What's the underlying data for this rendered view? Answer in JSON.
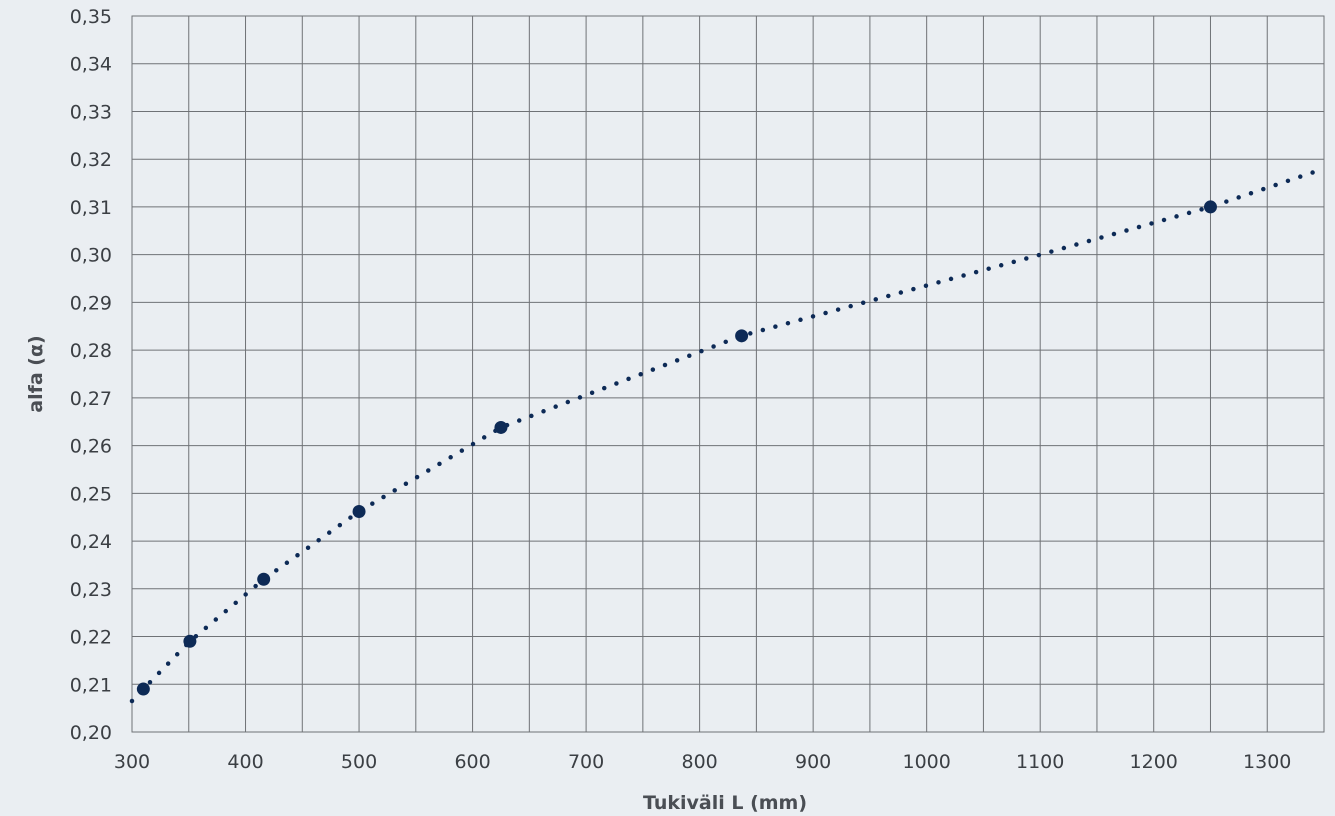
{
  "chart_data": {
    "type": "scatter",
    "xlabel": "Tukiväli L (mm)",
    "ylabel": "alfa (α)",
    "xlim": [
      300,
      1350
    ],
    "ylim": [
      0.2,
      0.35
    ],
    "x_ticks": [
      "300",
      "400",
      "500",
      "600",
      "700",
      "800",
      "900",
      "1000",
      "1100",
      "1200",
      "1300"
    ],
    "y_ticks": [
      "0,20",
      "0,21",
      "0,22",
      "0,23",
      "0,24",
      "0,25",
      "0,26",
      "0,27",
      "0,28",
      "0,29",
      "0,30",
      "0,31",
      "0,32",
      "0,33",
      "0,34",
      "0,35"
    ],
    "grid": true,
    "series": [
      {
        "kind": "points",
        "x": [
          310,
          351,
          416,
          500,
          625,
          837,
          1250
        ],
        "y": [
          0.209,
          0.219,
          0.232,
          0.2462,
          0.2638,
          0.283,
          0.31
        ],
        "color": "#0d2a56"
      },
      {
        "kind": "trendline",
        "style": "dotted",
        "x": [
          300,
          310,
          351,
          416,
          500,
          625,
          837,
          1100,
          1250,
          1350
        ],
        "y": [
          0.2065,
          0.209,
          0.219,
          0.232,
          0.2462,
          0.2638,
          0.283,
          0.3,
          0.31,
          0.318
        ],
        "color": "#0d2a56"
      }
    ]
  },
  "colors": {
    "background": "#eaeef2",
    "grid": "#6f7276",
    "marker": "#0d2a56"
  }
}
